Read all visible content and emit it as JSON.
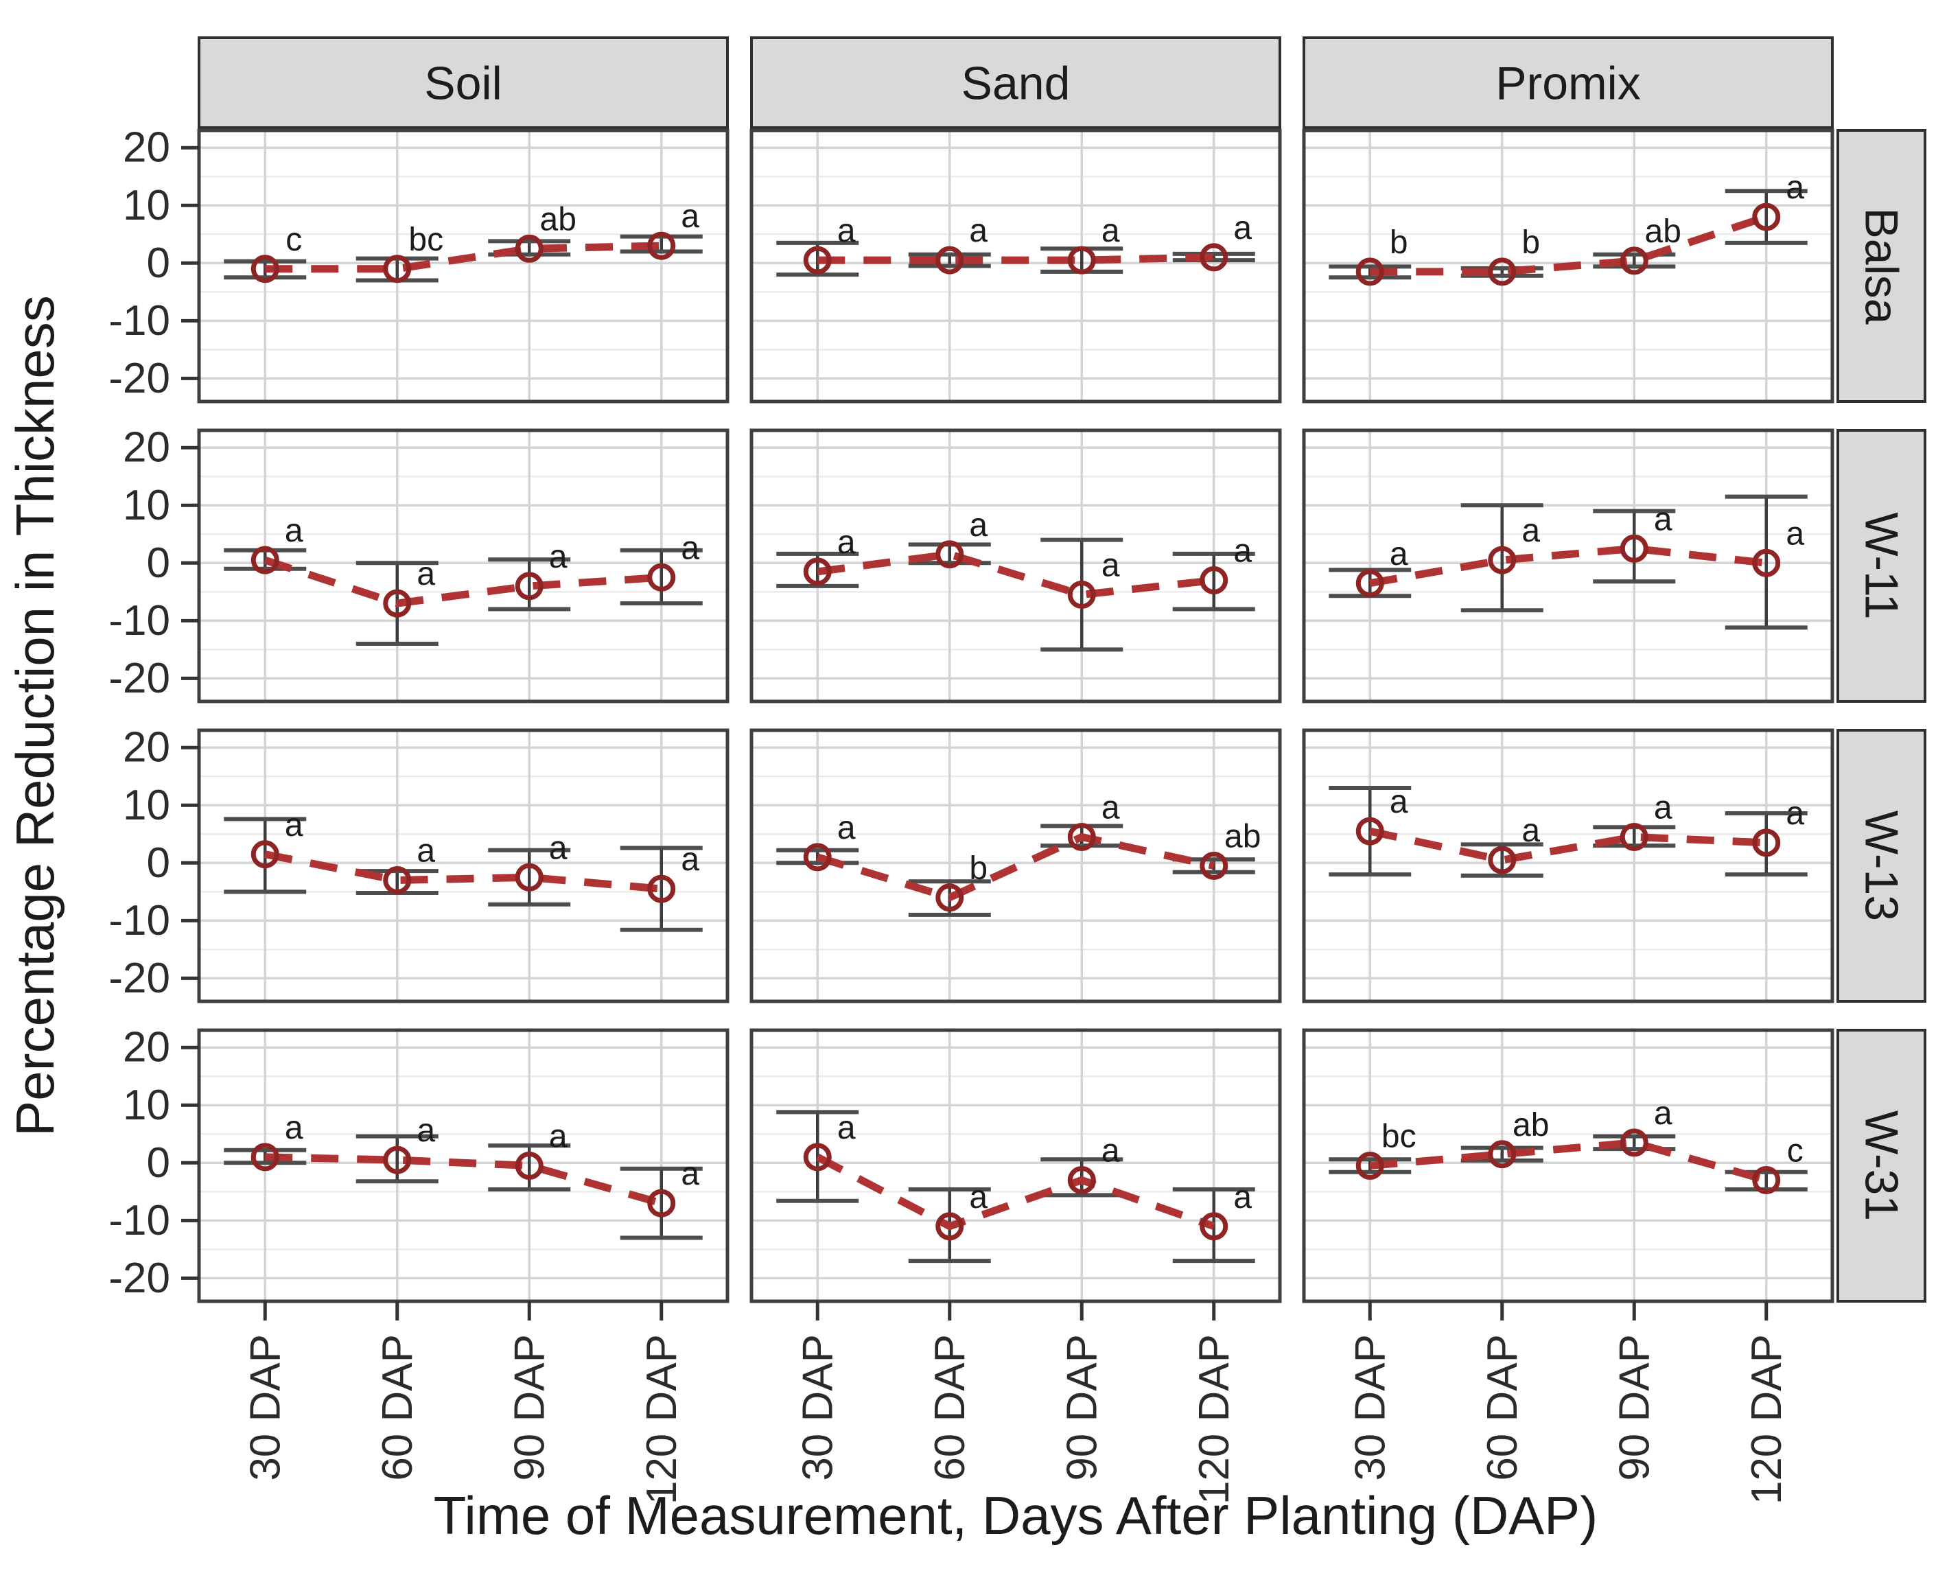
{
  "chart_data": {
    "type": "line",
    "subtype": "point-errorbar-dashed-line-facet-grid",
    "facets": {
      "columns": [
        "Soil",
        "Sand",
        "Promix"
      ],
      "rows": [
        "Balsa",
        "W-11",
        "W-13",
        "W-31"
      ]
    },
    "categories": [
      "30 DAP",
      "60 DAP",
      "90 DAP",
      "120 DAP"
    ],
    "xlabel": "Time of Measurement, Days After Planting (DAP)",
    "ylabel": "Percentage Reduction in Thickness",
    "y_ticks": [
      20,
      10,
      0,
      -10,
      -20
    ],
    "y_minor_ticks": [
      15,
      5,
      -5,
      -15
    ],
    "ylim": [
      -24,
      23
    ],
    "grid": true,
    "legend_position": "none",
    "marker": "open-circle",
    "line_style": "dashed",
    "panels": [
      {
        "row": "Balsa",
        "column": "Soil",
        "points": [
          {
            "x": "30 DAP",
            "mean": -1.0,
            "lo": -2.5,
            "hi": 0.3,
            "letter": "c"
          },
          {
            "x": "60 DAP",
            "mean": -1.0,
            "lo": -3.0,
            "hi": 0.8,
            "letter": "bc"
          },
          {
            "x": "90 DAP",
            "mean": 2.5,
            "lo": 1.5,
            "hi": 3.8,
            "letter": "ab"
          },
          {
            "x": "120 DAP",
            "mean": 3.0,
            "lo": 2.0,
            "hi": 4.6,
            "letter": "a"
          }
        ]
      },
      {
        "row": "Balsa",
        "column": "Sand",
        "points": [
          {
            "x": "30 DAP",
            "mean": 0.5,
            "lo": -2.0,
            "hi": 3.5,
            "letter": "a"
          },
          {
            "x": "60 DAP",
            "mean": 0.5,
            "lo": -0.5,
            "hi": 1.5,
            "letter": "a"
          },
          {
            "x": "90 DAP",
            "mean": 0.5,
            "lo": -1.5,
            "hi": 2.5,
            "letter": "a"
          },
          {
            "x": "120 DAP",
            "mean": 1.0,
            "lo": 0.5,
            "hi": 1.6,
            "letter": "a"
          }
        ]
      },
      {
        "row": "Balsa",
        "column": "Promix",
        "points": [
          {
            "x": "30 DAP",
            "mean": -1.5,
            "lo": -2.5,
            "hi": -0.6,
            "letter": "b"
          },
          {
            "x": "60 DAP",
            "mean": -1.5,
            "lo": -2.2,
            "hi": -0.9,
            "letter": "b"
          },
          {
            "x": "90 DAP",
            "mean": 0.4,
            "lo": -0.6,
            "hi": 1.5,
            "letter": "ab"
          },
          {
            "x": "120 DAP",
            "mean": 8.0,
            "lo": 3.5,
            "hi": 12.5,
            "letter": "a"
          }
        ]
      },
      {
        "row": "W-11",
        "column": "Soil",
        "points": [
          {
            "x": "30 DAP",
            "mean": 0.5,
            "lo": -1.0,
            "hi": 2.2,
            "letter": "a"
          },
          {
            "x": "60 DAP",
            "mean": -7.0,
            "lo": -14.0,
            "hi": 0.0,
            "letter": "a"
          },
          {
            "x": "90 DAP",
            "mean": -4.0,
            "lo": -8.0,
            "hi": 0.6,
            "letter": "a"
          },
          {
            "x": "120 DAP",
            "mean": -2.5,
            "lo": -7.0,
            "hi": 2.2,
            "letter": "a"
          }
        ]
      },
      {
        "row": "W-11",
        "column": "Sand",
        "points": [
          {
            "x": "30 DAP",
            "mean": -1.5,
            "lo": -4.0,
            "hi": 1.6,
            "letter": "a"
          },
          {
            "x": "60 DAP",
            "mean": 1.5,
            "lo": 0.0,
            "hi": 3.2,
            "letter": "a"
          },
          {
            "x": "90 DAP",
            "mean": -5.5,
            "lo": -15.0,
            "hi": 4.0,
            "letter": "a"
          },
          {
            "x": "120 DAP",
            "mean": -3.0,
            "lo": -8.0,
            "hi": 1.6,
            "letter": "a"
          }
        ]
      },
      {
        "row": "W-11",
        "column": "Promix",
        "points": [
          {
            "x": "30 DAP",
            "mean": -3.5,
            "lo": -5.7,
            "hi": -1.2,
            "letter": "a"
          },
          {
            "x": "60 DAP",
            "mean": 0.5,
            "lo": -8.2,
            "hi": 10.0,
            "letter": "a"
          },
          {
            "x": "90 DAP",
            "mean": 2.5,
            "lo": -3.2,
            "hi": 9.0,
            "letter": "a"
          },
          {
            "x": "120 DAP",
            "mean": 0.0,
            "lo": -11.2,
            "hi": 11.5,
            "letter": "a"
          }
        ]
      },
      {
        "row": "W-13",
        "column": "Soil",
        "points": [
          {
            "x": "30 DAP",
            "mean": 1.5,
            "lo": -5.0,
            "hi": 7.6,
            "letter": "a"
          },
          {
            "x": "60 DAP",
            "mean": -3.0,
            "lo": -5.2,
            "hi": -1.4,
            "letter": "a"
          },
          {
            "x": "90 DAP",
            "mean": -2.5,
            "lo": -7.2,
            "hi": 2.2,
            "letter": "a"
          },
          {
            "x": "120 DAP",
            "mean": -4.5,
            "lo": -11.6,
            "hi": 2.6,
            "letter": "a"
          }
        ]
      },
      {
        "row": "W-13",
        "column": "Sand",
        "points": [
          {
            "x": "30 DAP",
            "mean": 1.0,
            "lo": 0.0,
            "hi": 2.2,
            "letter": "a"
          },
          {
            "x": "60 DAP",
            "mean": -6.0,
            "lo": -9.0,
            "hi": -3.2,
            "letter": "b"
          },
          {
            "x": "90 DAP",
            "mean": 4.5,
            "lo": 3.0,
            "hi": 6.4,
            "letter": "a"
          },
          {
            "x": "120 DAP",
            "mean": -0.5,
            "lo": -1.6,
            "hi": 0.6,
            "letter": "ab"
          }
        ]
      },
      {
        "row": "W-13",
        "column": "Promix",
        "points": [
          {
            "x": "30 DAP",
            "mean": 5.5,
            "lo": -2.0,
            "hi": 13.0,
            "letter": "a"
          },
          {
            "x": "60 DAP",
            "mean": 0.5,
            "lo": -2.2,
            "hi": 3.2,
            "letter": "a"
          },
          {
            "x": "90 DAP",
            "mean": 4.5,
            "lo": 3.0,
            "hi": 6.2,
            "letter": "a"
          },
          {
            "x": "120 DAP",
            "mean": 3.5,
            "lo": -2.0,
            "hi": 8.6,
            "letter": "a"
          }
        ]
      },
      {
        "row": "W-31",
        "column": "Soil",
        "points": [
          {
            "x": "30 DAP",
            "mean": 1.0,
            "lo": 0.0,
            "hi": 2.2,
            "letter": "a"
          },
          {
            "x": "60 DAP",
            "mean": 0.5,
            "lo": -3.2,
            "hi": 4.6,
            "letter": "a"
          },
          {
            "x": "90 DAP",
            "mean": -0.5,
            "lo": -4.6,
            "hi": 3.0,
            "letter": "a"
          },
          {
            "x": "120 DAP",
            "mean": -7.0,
            "lo": -13.0,
            "hi": -1.0,
            "letter": "a"
          }
        ]
      },
      {
        "row": "W-31",
        "column": "Sand",
        "points": [
          {
            "x": "30 DAP",
            "mean": 1.0,
            "lo": -6.6,
            "hi": 8.8,
            "letter": "a"
          },
          {
            "x": "60 DAP",
            "mean": -11.0,
            "lo": -17.0,
            "hi": -4.6,
            "letter": "a"
          },
          {
            "x": "90 DAP",
            "mean": -3.0,
            "lo": -5.6,
            "hi": 0.6,
            "letter": "a"
          },
          {
            "x": "120 DAP",
            "mean": -11.0,
            "lo": -17.0,
            "hi": -4.6,
            "letter": "a"
          }
        ]
      },
      {
        "row": "W-31",
        "column": "Promix",
        "points": [
          {
            "x": "30 DAP",
            "mean": -0.5,
            "lo": -1.6,
            "hi": 0.6,
            "letter": "bc"
          },
          {
            "x": "60 DAP",
            "mean": 1.5,
            "lo": 0.4,
            "hi": 2.6,
            "letter": "ab"
          },
          {
            "x": "90 DAP",
            "mean": 3.5,
            "lo": 2.4,
            "hi": 4.6,
            "letter": "a"
          },
          {
            "x": "120 DAP",
            "mean": -3.0,
            "lo": -4.6,
            "hi": -1.6,
            "letter": "c"
          }
        ]
      }
    ],
    "colors": {
      "point": "#8e2424",
      "line": "#b03333",
      "error_bar_cap": "#4d4d4d",
      "error_bar_line": "#3d3d3d",
      "strip_bg": "#d9d9d9",
      "strip_border": "#2f2f2f",
      "panel_border": "#3f3f3f",
      "grid_major": "#d4d4d4",
      "grid_minor": "#ebebeb",
      "tick": "#333333",
      "text": "#1c1c1c"
    }
  }
}
